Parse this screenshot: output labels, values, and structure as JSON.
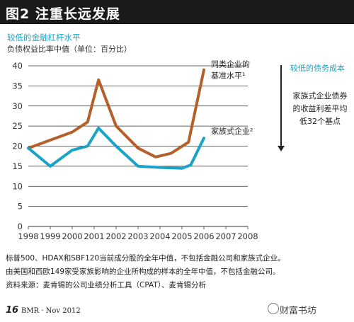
{
  "header": {
    "title": "图2 注重长远发展"
  },
  "chart_data": {
    "type": "line",
    "subtitle": "较低的金融杠杆水平",
    "ylabel": "负债权益比率中值（单位：百分比）",
    "x": [
      "1998",
      "1999",
      "2000",
      "2001",
      "2002",
      "2003",
      "2004",
      "2005",
      "2006"
    ],
    "xticks": [
      "1998",
      "1999",
      "2000",
      "2001",
      "2002",
      "2003",
      "2004",
      "2005",
      "2006",
      "2007",
      "2008"
    ],
    "yticks": [
      "0",
      "5",
      "10",
      "15",
      "20",
      "25",
      "30",
      "35",
      "40"
    ],
    "ylim": [
      0,
      40
    ],
    "xlim": [
      1998,
      2008
    ],
    "grid": true,
    "series": [
      {
        "name": "同类企业的基准水平",
        "name_lines": [
          "同类企业的",
          "基准水平¹"
        ],
        "color": "#b5602b",
        "x": [
          1998,
          1999,
          2000,
          2000.7,
          2001.2,
          2002,
          2003,
          2003.8,
          2004.5,
          2005.3,
          2006
        ],
        "values": [
          19.5,
          21.5,
          23.5,
          26,
          36.5,
          25,
          19.5,
          17.3,
          18.2,
          21,
          39
        ]
      },
      {
        "name": "家族式企业",
        "name_lines": [
          "家族式企业²"
        ],
        "color": "#1aa3c7",
        "x": [
          1998,
          1999,
          2000,
          2000.7,
          2001.2,
          2002,
          2003,
          2004,
          2005,
          2005.4,
          2006
        ],
        "values": [
          19.5,
          15,
          19,
          20,
          24.5,
          20,
          15,
          14.7,
          14.5,
          15.3,
          22
        ]
      }
    ]
  },
  "annotation": {
    "title": "较低的债务成本",
    "note_lines": [
      "家族式企业债券",
      "的收益利差平均",
      "低32个基点"
    ]
  },
  "footnotes": [
    "标普500、HDAX和SBF120当前成分股的全年中值，不包括金融公司和家族式企业。",
    "由美国和西欧149家受家族影响的企业所构成的样本的全年中值，不包括金融公司。",
    "资料来源：麦肯锡的公司业绩分析工具（CPAT）、麦肯锡分析"
  ],
  "footer": {
    "page": "16",
    "magazine": "BMR · Nov 2012",
    "watermark": "财富书坊"
  }
}
